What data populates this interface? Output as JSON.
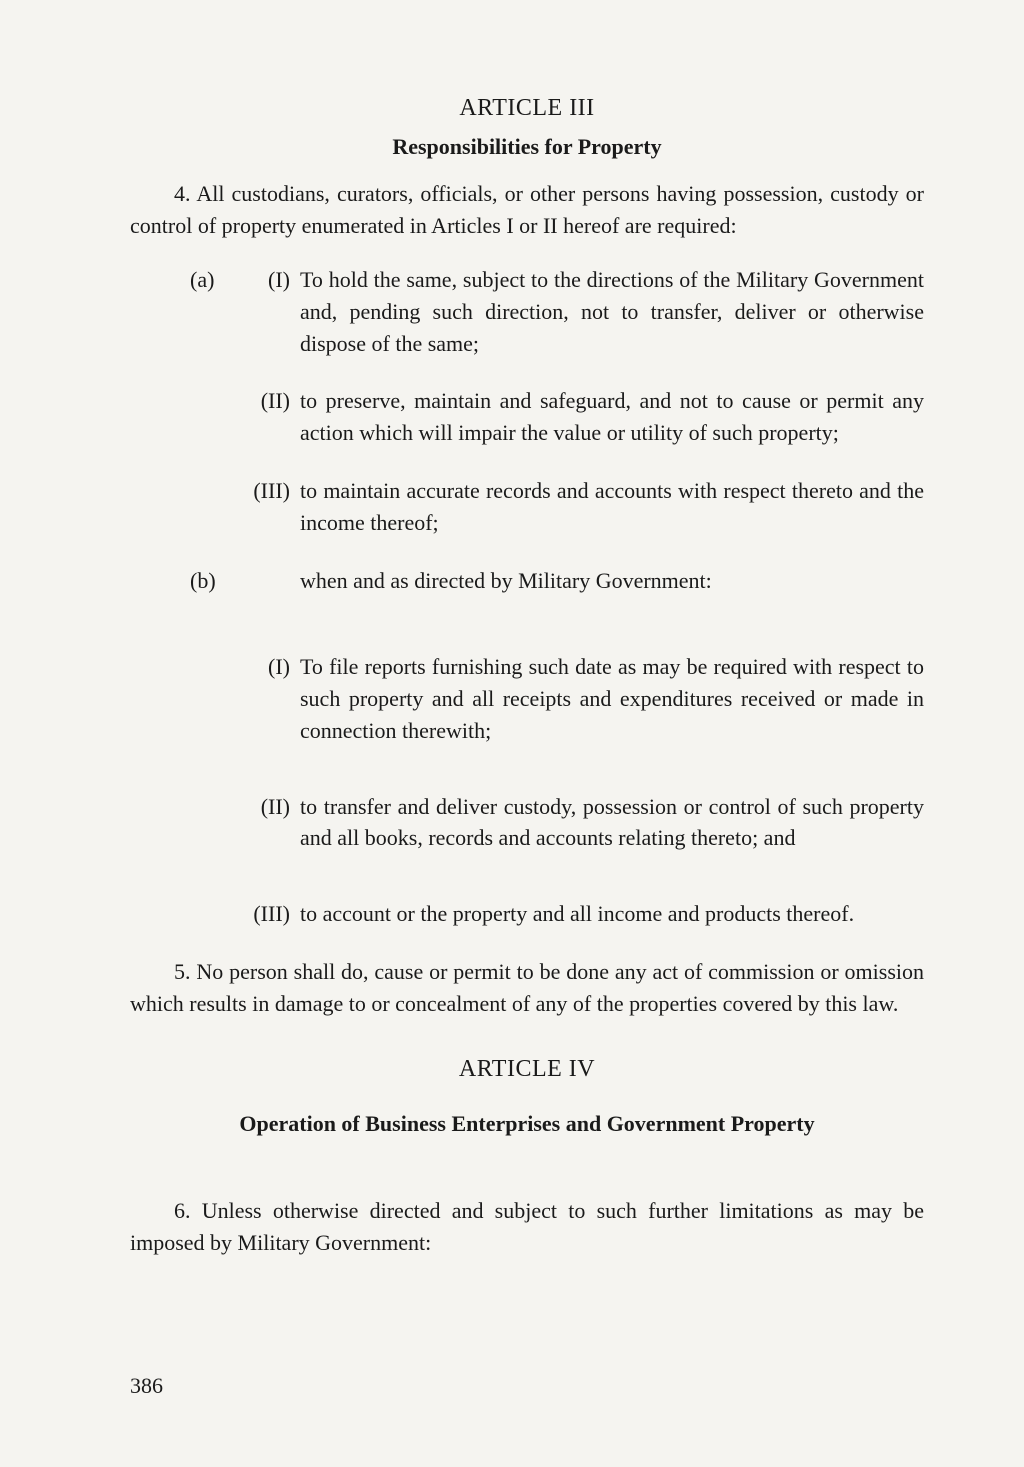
{
  "article3": {
    "heading": "ARTICLE III",
    "subtitle": "Responsibilities for Property",
    "para4": "4. All custodians, curators, officials, or other persons having possession, custody or control of property enumerated in Articles I or II hereof are required:",
    "a_marker": "(a)",
    "a_items": [
      {
        "roman": "(I)",
        "text": "To hold the same, subject to the directions of the Military Government and, pending such direction, not to transfer, deliver or otherwise dispose of the same;"
      },
      {
        "roman": "(II)",
        "text": "to preserve, maintain and safeguard, and not to cause or permit any action which will impair the value or utility of such property;"
      },
      {
        "roman": "(III)",
        "text": "to maintain accurate records and accounts with respect thereto and the income thereof;"
      }
    ],
    "b_marker": "(b)",
    "b_intro": "when and as directed by Military Government:",
    "b_items": [
      {
        "roman": "(I)",
        "text": "To file reports furnishing such date as may be required with respect to such property and all receipts and expenditures received or made in connection therewith;"
      },
      {
        "roman": "(II)",
        "text": "to transfer and deliver custody, possession or control of such property and all books, records and accounts relating thereto; and"
      },
      {
        "roman": "(III)",
        "text": "to account or the property and all income and products thereof."
      }
    ],
    "para5": "5. No person shall do, cause or permit to be done any act of commission or omission which results in damage to or concealment of any of the properties covered by this law."
  },
  "article4": {
    "heading": "ARTICLE IV",
    "subtitle": "Operation of Business Enterprises and Government Property",
    "para6": "6. Unless otherwise directed and subject to such further limitations as may be imposed by Military Government:"
  },
  "page_number": "386"
}
